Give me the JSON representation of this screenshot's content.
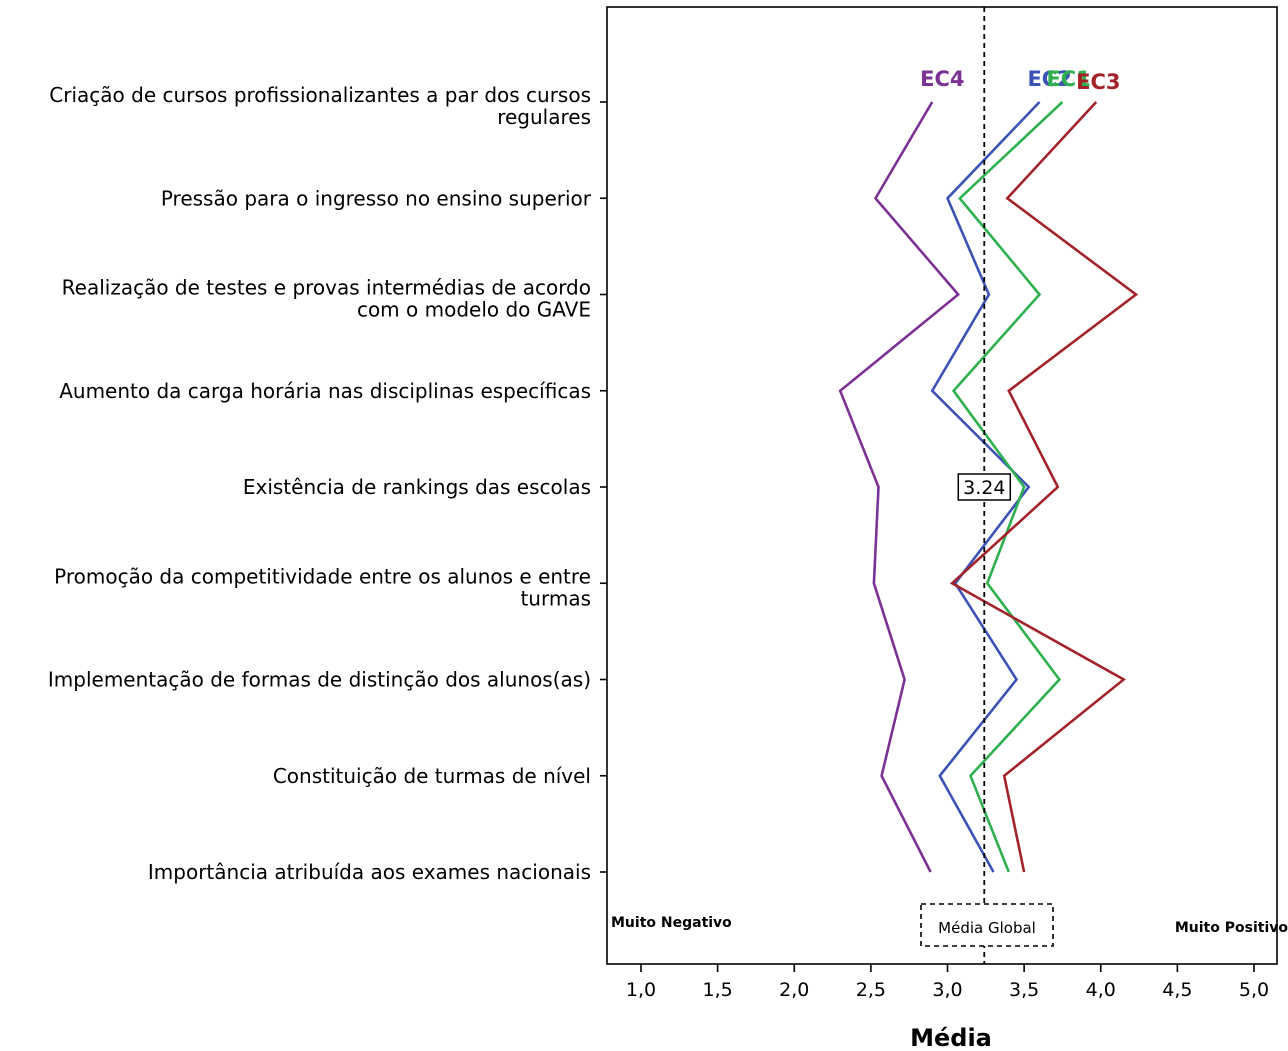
{
  "chart_data": {
    "type": "line",
    "xlabel": "Média",
    "xlim": [
      0.8,
      5.2
    ],
    "xticks": [
      "1,0",
      "1,5",
      "2,0",
      "2,5",
      "3,0",
      "3,5",
      "4,0",
      "4,5",
      "5,0"
    ],
    "xtick_values": [
      1.0,
      1.5,
      2.0,
      2.5,
      3.0,
      3.5,
      4.0,
      4.5,
      5.0
    ],
    "categories": [
      [
        "Criação de cursos profissionalizantes a par dos cursos",
        "regulares"
      ],
      [
        "Pressão para o ingresso no ensino superior"
      ],
      [
        "Realização de testes e provas intermédias de acordo",
        "com o modelo do GAVE"
      ],
      [
        "Aumento da carga horária nas disciplinas específicas"
      ],
      [
        "Existência de rankings das escolas"
      ],
      [
        "Promoção da competitividade entre os alunos e entre",
        "turmas"
      ],
      [
        "Implementação de formas de distinção dos alunos(as)"
      ],
      [
        "Constituição de turmas de nível"
      ],
      [
        "Importância atribuída aos exames nacionais"
      ]
    ],
    "series": [
      {
        "name": "EC4",
        "color": "#7b3294",
        "values": [
          2.9,
          2.53,
          3.07,
          2.3,
          2.55,
          2.52,
          2.72,
          2.57,
          2.89
        ]
      },
      {
        "name": "EC2",
        "color": "#3a53b4",
        "values": [
          3.6,
          3.0,
          3.27,
          2.9,
          3.53,
          3.05,
          3.45,
          2.95,
          3.3
        ]
      },
      {
        "name": "EC1",
        "color": "#2eb04f",
        "values": [
          3.75,
          3.08,
          3.6,
          3.04,
          3.5,
          3.26,
          3.73,
          3.15,
          3.4
        ]
      },
      {
        "name": "EC3",
        "color": "#a3232a",
        "values": [
          3.97,
          3.39,
          4.23,
          3.4,
          3.72,
          3.03,
          4.15,
          3.37,
          3.5
        ]
      }
    ],
    "reference_line": {
      "value": 3.24,
      "value_label": "3.24",
      "label": "Média Global"
    },
    "annotations": {
      "left": "Muito Negativo",
      "right": "Muito Positivo"
    },
    "grid": false
  }
}
